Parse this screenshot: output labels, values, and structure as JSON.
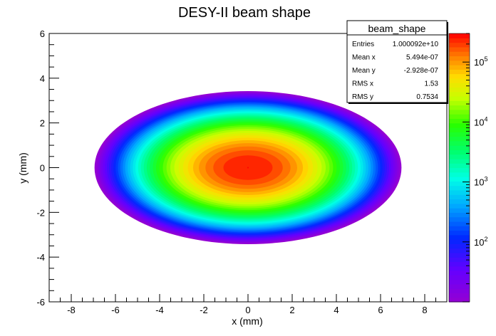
{
  "chart_data": {
    "type": "heatmap",
    "title": "DESY-II beam shape",
    "xlabel": "x (mm)",
    "ylabel": "y (mm)",
    "xlim": [
      -9,
      9
    ],
    "ylim": [
      -6,
      6
    ],
    "x_ticks": [
      "-8",
      "-6",
      "-4",
      "-2",
      "0",
      "2",
      "4",
      "6",
      "8"
    ],
    "y_ticks": [
      "-6",
      "-4",
      "-2",
      "0",
      "2",
      "4",
      "6"
    ],
    "z_scale": "log",
    "z_range": [
      10,
      300000
    ],
    "z_tick_labels": [
      {
        "base": "10",
        "exp": "2",
        "value": 100
      },
      {
        "base": "10",
        "exp": "3",
        "value": 1000
      },
      {
        "base": "10",
        "exp": "4",
        "value": 10000
      },
      {
        "base": "10",
        "exp": "5",
        "value": 100000
      }
    ],
    "distribution": {
      "shape": "2D gaussian",
      "center": [
        0,
        0
      ],
      "sigma_x": 1.53,
      "sigma_y": 0.7534,
      "peak_count": 300000,
      "visible_extent_x": [
        -7.2,
        7.2
      ],
      "visible_extent_y": [
        -3.5,
        3.6
      ]
    },
    "colormap": "rainbow (violet-blue-cyan-green-yellow-red)",
    "stats_box": {
      "title": "beam_shape",
      "rows": [
        {
          "label": "Entries",
          "value": "1.000092e+10"
        },
        {
          "label": "Mean x",
          "value": "5.494e-07"
        },
        {
          "label": "Mean y",
          "value": "-2.928e-07"
        },
        {
          "label": "RMS x",
          "value": "1.53"
        },
        {
          "label": "RMS y",
          "value": "0.7534"
        }
      ]
    },
    "grid": false
  }
}
